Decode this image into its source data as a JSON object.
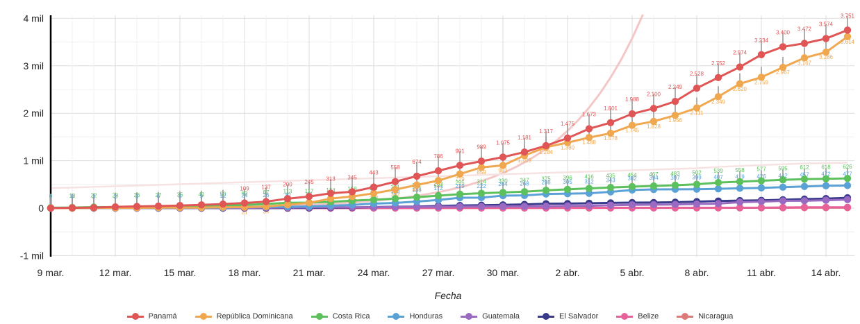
{
  "chart_data": {
    "type": "line",
    "xlabel": "Fecha",
    "ylabel": "",
    "ylim": [
      -1000,
      4000
    ],
    "y_ticks": [
      {
        "value": 4000,
        "label": "4 mil"
      },
      {
        "value": 3000,
        "label": "3 mil"
      },
      {
        "value": 2000,
        "label": "2 mil"
      },
      {
        "value": 1000,
        "label": "1 mil"
      },
      {
        "value": 0,
        "label": "0"
      },
      {
        "value": -1000,
        "label": "-1 mil"
      }
    ],
    "x_tick_labels": [
      "9 mar.",
      "12 mar.",
      "15 mar.",
      "18 mar.",
      "21 mar.",
      "24 mar.",
      "27 mar.",
      "30 mar.",
      "2 abr.",
      "5 abr.",
      "8 abr.",
      "11 abr.",
      "14 abr."
    ],
    "x": [
      "9 mar.",
      "10 mar.",
      "11 mar.",
      "12 mar.",
      "13 mar.",
      "14 mar.",
      "15 mar.",
      "16 mar.",
      "17 mar.",
      "18 mar.",
      "19 mar.",
      "20 mar.",
      "21 mar.",
      "22 mar.",
      "23 mar.",
      "24 mar.",
      "25 mar.",
      "26 mar.",
      "27 mar.",
      "28 mar.",
      "29 mar.",
      "30 mar.",
      "31 mar.",
      "1 abr.",
      "2 abr.",
      "3 abr.",
      "4 abr.",
      "5 abr.",
      "6 abr.",
      "7 abr.",
      "8 abr.",
      "9 abr.",
      "10 abr.",
      "11 abr.",
      "12 abr.",
      "13 abr.",
      "14 abr.",
      "15 abr."
    ],
    "grid": true,
    "legend_position": "bottom",
    "series": [
      {
        "name": "Panamá",
        "color": "#e05555",
        "values": [
          1,
          8,
          11,
          27,
          36,
          43,
          55,
          69,
          86,
          109,
          137,
          200,
          245,
          313,
          345,
          443,
          558,
          674,
          786,
          901,
          989,
          1075,
          1181,
          1317,
          1475,
          1673,
          1801,
          1988,
          2100,
          2249,
          2528,
          2752,
          2974,
          3234,
          3400,
          3472,
          3574,
          3751
        ]
      },
      {
        "name": "República Dominicana",
        "color": "#f0a850",
        "values": [
          0,
          0,
          5,
          5,
          6,
          11,
          11,
          11,
          21,
          21,
          34,
          72,
          112,
          202,
          245,
          312,
          392,
          488,
          581,
          719,
          859,
          901,
          1109,
          1284,
          1380,
          1488,
          1578,
          1745,
          1828,
          1956,
          2111,
          2349,
          2620,
          2759,
          2967,
          3167,
          3286,
          3614
        ]
      },
      {
        "name": "Costa Rica",
        "color": "#5cc05c",
        "values": [
          9,
          13,
          22,
          23,
          26,
          27,
          35,
          41,
          50,
          69,
          87,
          113,
          117,
          134,
          158,
          177,
          201,
          231,
          263,
          295,
          314,
          330,
          347,
          375,
          396,
          416,
          435,
          454,
          467,
          483,
          502,
          539,
          558,
          577,
          595,
          612,
          618,
          626
        ]
      },
      {
        "name": "Honduras",
        "color": "#5aa2d6",
        "values": [
          0,
          0,
          2,
          2,
          3,
          6,
          8,
          9,
          12,
          24,
          26,
          30,
          36,
          52,
          68,
          95,
          110,
          139,
          172,
          219,
          222,
          264,
          268,
          298,
          305,
          312,
          343,
          382,
          394,
          397,
          399,
          407,
          419,
          426,
          442,
          457,
          472,
          477
        ]
      },
      {
        "name": "Guatemala",
        "color": "#9a6ac2",
        "values": [
          0,
          0,
          0,
          0,
          1,
          1,
          1,
          2,
          6,
          6,
          9,
          12,
          17,
          19,
          20,
          21,
          24,
          25,
          28,
          32,
          34,
          36,
          38,
          39,
          47,
          50,
          61,
          70,
          74,
          77,
          87,
          95,
          126,
          137,
          153,
          156,
          167,
          180
        ]
      },
      {
        "name": "El Salvador",
        "color": "#3a3a8c",
        "values": [
          0,
          0,
          0,
          0,
          0,
          0,
          0,
          0,
          0,
          1,
          1,
          3,
          5,
          9,
          13,
          24,
          30,
          32,
          46,
          56,
          62,
          69,
          78,
          93,
          96,
          103,
          111,
          117,
          118,
          125,
          137,
          149,
          159,
          164,
          177,
          190,
          201,
          218
        ]
      },
      {
        "name": "Belize",
        "color": "#e8629a",
        "values": [
          0,
          0,
          0,
          0,
          0,
          0,
          0,
          0,
          0,
          0,
          0,
          0,
          0,
          0,
          1,
          2,
          2,
          3,
          3,
          3,
          3,
          3,
          3,
          3,
          5,
          5,
          7,
          7,
          7,
          7,
          7,
          8,
          10,
          10,
          14,
          18,
          18,
          18
        ]
      },
      {
        "name": "Nicaragua",
        "color": "#df7a7a",
        "values": [
          0,
          0,
          0,
          0,
          0,
          0,
          0,
          0,
          0,
          1,
          1,
          2,
          2,
          2,
          2,
          2,
          2,
          2,
          3,
          4,
          4,
          4,
          5,
          5,
          5,
          5,
          5,
          6,
          6,
          6,
          6,
          6,
          7,
          8,
          8,
          9,
          9,
          9
        ]
      }
    ]
  }
}
